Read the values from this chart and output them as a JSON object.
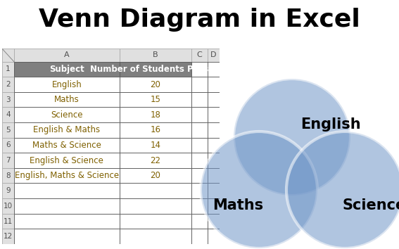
{
  "title": "Venn Diagram in Excel",
  "title_fontsize": 26,
  "title_fontweight": "bold",
  "bg_color": "#ffffff",
  "spreadsheet": {
    "header_row": [
      "Subject",
      "Number of Students Passed"
    ],
    "rows": [
      [
        "English",
        "20"
      ],
      [
        "Maths",
        "15"
      ],
      [
        "Science",
        "18"
      ],
      [
        "English & Maths",
        "16"
      ],
      [
        "Maths & Science",
        "14"
      ],
      [
        "English & Science",
        "22"
      ],
      [
        "English, Maths & Science",
        "20"
      ]
    ],
    "header_bg": "#7f7f7f",
    "header_fg": "#ffffff",
    "cell_bg": "#ffffff",
    "cell_fg": "#7f6000",
    "row_num_bg": "#e0e0e0",
    "row_num_fg": "#505050",
    "col_hdr_bg": "#e0e0e0",
    "col_hdr_fg": "#505050",
    "grid_color": "#000000",
    "border_color": "#999999"
  },
  "venn": {
    "circle_color": "#7096c8",
    "circle_alpha": 0.55,
    "circle_edge_color": "#ffffff",
    "circle_linewidth": 3.0,
    "label_english": "English",
    "label_maths": "Maths",
    "label_science": "Science",
    "label_fontsize": 15,
    "label_fontweight": "bold"
  }
}
